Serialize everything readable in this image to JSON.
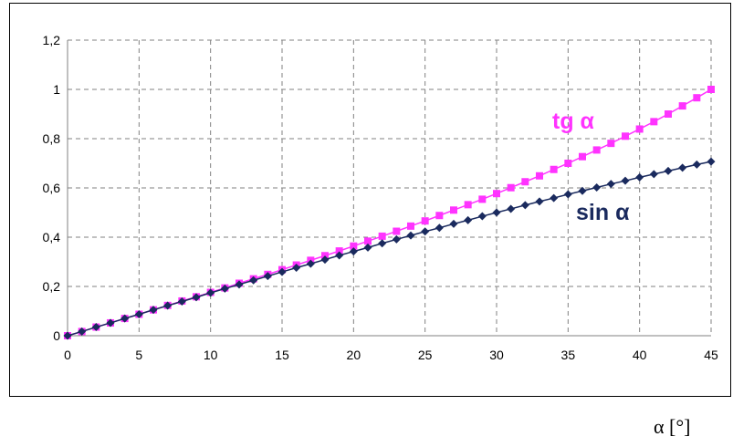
{
  "chart_data": {
    "type": "line",
    "xlabel": "α [°]",
    "ylabel": "",
    "xlim": [
      0,
      45
    ],
    "ylim": [
      0,
      1.2
    ],
    "x_ticks": [
      "0",
      "5",
      "10",
      "15",
      "20",
      "25",
      "30",
      "35",
      "40",
      "45"
    ],
    "y_ticks": [
      "0",
      "0,2",
      "0,4",
      "0,6",
      "0,8",
      "1",
      "1,2"
    ],
    "grid": true,
    "grid_style": "dashed",
    "legend": "inline labels",
    "x": [
      0,
      1,
      2,
      3,
      4,
      5,
      6,
      7,
      8,
      9,
      10,
      11,
      12,
      13,
      14,
      15,
      16,
      17,
      18,
      19,
      20,
      21,
      22,
      23,
      24,
      25,
      26,
      27,
      28,
      29,
      30,
      31,
      32,
      33,
      34,
      35,
      36,
      37,
      38,
      39,
      40,
      41,
      42,
      43,
      44,
      45
    ],
    "series": [
      {
        "name": "tg α",
        "color": "#ff33ff",
        "marker": "square",
        "values": [
          0,
          0.017,
          0.035,
          0.052,
          0.07,
          0.087,
          0.105,
          0.123,
          0.141,
          0.158,
          0.176,
          0.194,
          0.213,
          0.231,
          0.249,
          0.268,
          0.287,
          0.306,
          0.325,
          0.344,
          0.364,
          0.384,
          0.404,
          0.424,
          0.445,
          0.466,
          0.488,
          0.51,
          0.532,
          0.554,
          0.577,
          0.601,
          0.625,
          0.649,
          0.675,
          0.7,
          0.727,
          0.754,
          0.781,
          0.81,
          0.839,
          0.869,
          0.9,
          0.933,
          0.966,
          1.0
        ]
      },
      {
        "name": "sin α",
        "color": "#1a2a5e",
        "marker": "diamond",
        "values": [
          0,
          0.017,
          0.035,
          0.052,
          0.07,
          0.087,
          0.105,
          0.122,
          0.139,
          0.156,
          0.174,
          0.191,
          0.208,
          0.225,
          0.242,
          0.259,
          0.276,
          0.292,
          0.309,
          0.326,
          0.342,
          0.358,
          0.375,
          0.391,
          0.407,
          0.423,
          0.438,
          0.454,
          0.469,
          0.485,
          0.5,
          0.515,
          0.53,
          0.545,
          0.559,
          0.574,
          0.588,
          0.602,
          0.616,
          0.629,
          0.643,
          0.656,
          0.669,
          0.682,
          0.695,
          0.707
        ]
      }
    ]
  }
}
